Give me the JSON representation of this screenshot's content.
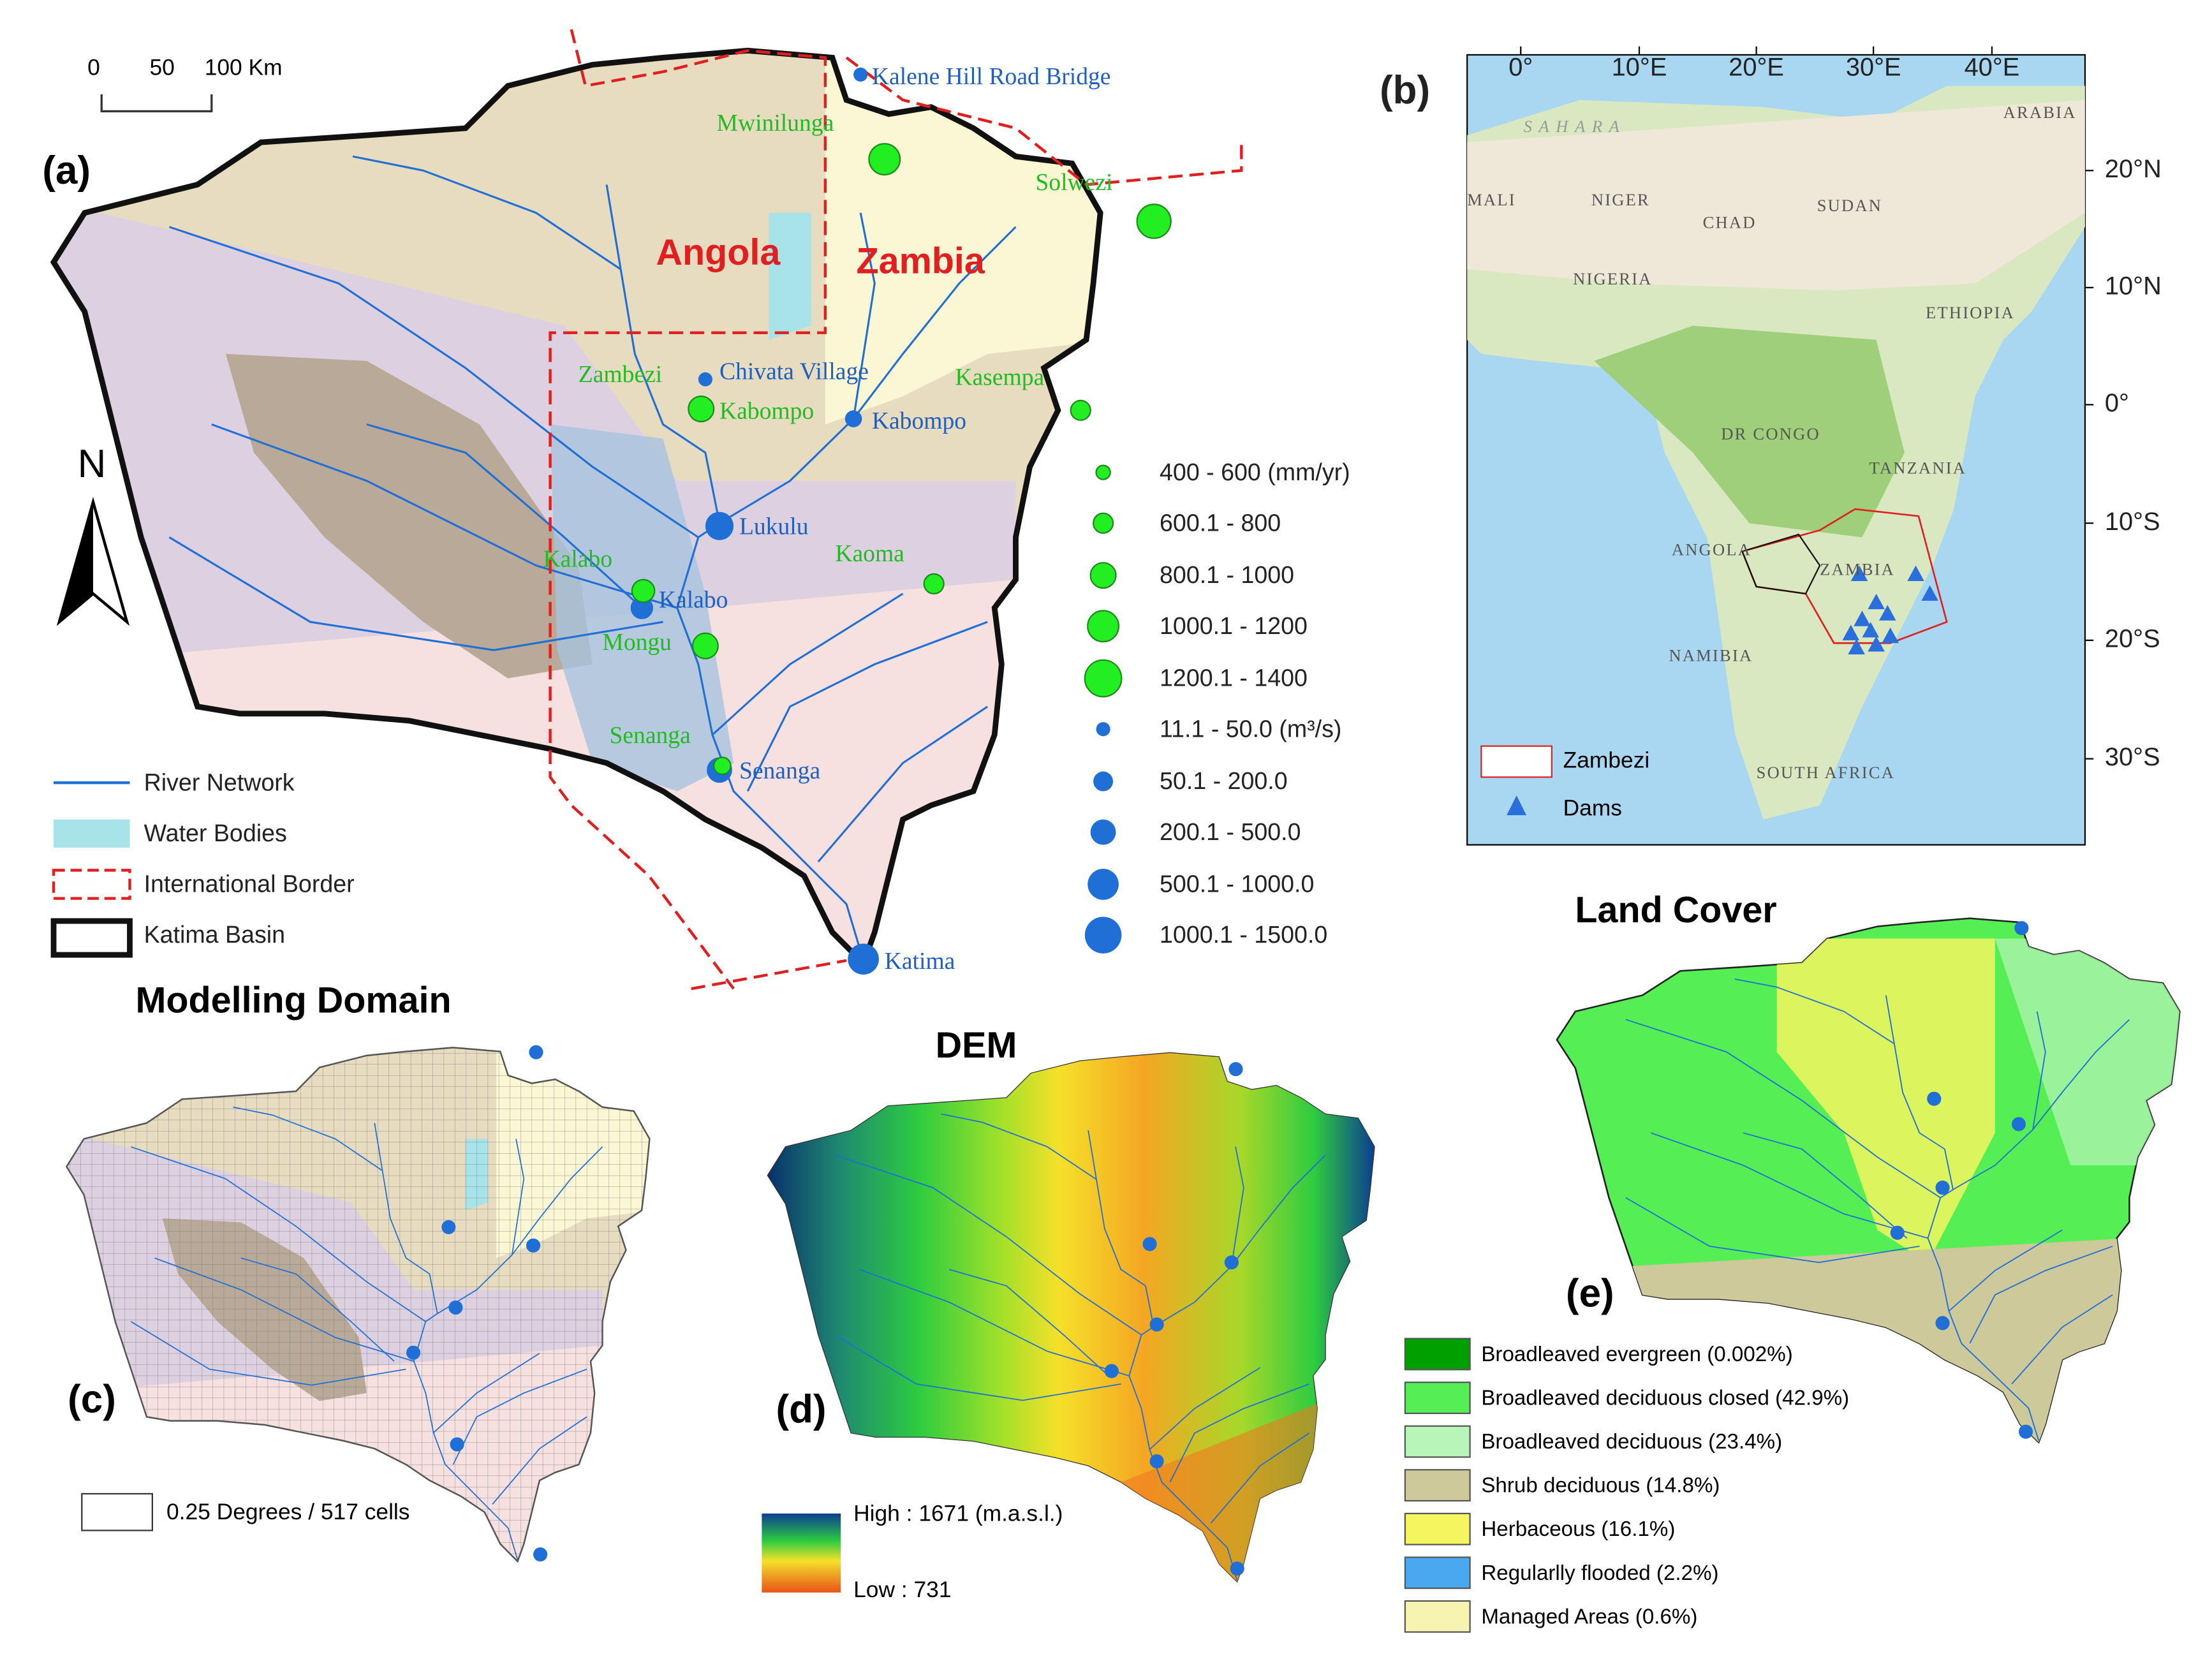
{
  "panel_a": {
    "label": "(a)",
    "scale_bar": [
      "0",
      "50",
      "100 Km"
    ],
    "north": "N",
    "countries": [
      "Angola",
      "Zambia"
    ],
    "flow_stations": [
      "Kalene Hill Road Bridge",
      "Chivata Village",
      "Kabompo",
      "Lukulu",
      "Kalabo",
      "Senanga",
      "Katima"
    ],
    "rain_gauges": [
      "Mwinilunga",
      "Solwezi",
      "Zambezi",
      "Kabompo",
      "Kasempa",
      "Kalabo",
      "Kaoma",
      "Mongu",
      "Senanga"
    ],
    "legend": [
      "River Network",
      "Water Bodies",
      "International Border",
      "Katima Basin"
    ],
    "rain_legend": [
      "400 - 600 (mm/yr)",
      "600.1 - 800",
      "800.1 - 1000",
      "1000.1 - 1200",
      "1200.1 - 1400"
    ],
    "flow_legend": [
      "11.1 - 50.0 (m³/s)",
      "50.1 - 200.0",
      "200.1 - 500.0",
      "500.1 - 1000.0",
      "1000.1 - 1500.0"
    ]
  },
  "panel_b": {
    "label": "(b)",
    "lon_ticks": [
      "0°",
      "10°E",
      "20°E",
      "30°E",
      "40°E"
    ],
    "lat_ticks": [
      "20°N",
      "10°N",
      "0°",
      "10°S",
      "20°S",
      "30°S"
    ],
    "places": [
      "S A H A R A",
      "ARABIA",
      "MALI",
      "NIGER",
      "CHAD",
      "SUDAN",
      "NIGERIA",
      "ETHIOPIA",
      "DR CONGO",
      "TANZANIA",
      "ANGOLA",
      "ZAMBIA",
      "NAMIBIA",
      "SOUTH AFRICA"
    ],
    "legend": [
      "Zambezi",
      "Dams"
    ]
  },
  "panel_c": {
    "label": "(c)",
    "title": "Modelling Domain",
    "legend": "0.25 Degrees / 517 cells"
  },
  "panel_d": {
    "label": "(d)",
    "title": "DEM",
    "high": "High : 1671 (m.a.s.l.)",
    "low": "Low : 731"
  },
  "panel_e": {
    "label": "(e)",
    "title": "Land Cover",
    "classes": [
      {
        "label": "Broadleaved evergreen (0.002%)",
        "color": "#00a000"
      },
      {
        "label": "Broadleaved deciduous closed (42.9%)",
        "color": "#55ee55"
      },
      {
        "label": "Broadleaved deciduous (23.4%)",
        "color": "#b8f5b8"
      },
      {
        "label": "Shrub deciduous (14.8%)",
        "color": "#cdc99a"
      },
      {
        "label": "Herbaceous (16.1%)",
        "color": "#f5f560"
      },
      {
        "label": "Regularlly flooded (2.2%)",
        "color": "#4aa8f0"
      },
      {
        "label": "Managed Areas (0.6%)",
        "color": "#f7f3b0"
      }
    ]
  }
}
